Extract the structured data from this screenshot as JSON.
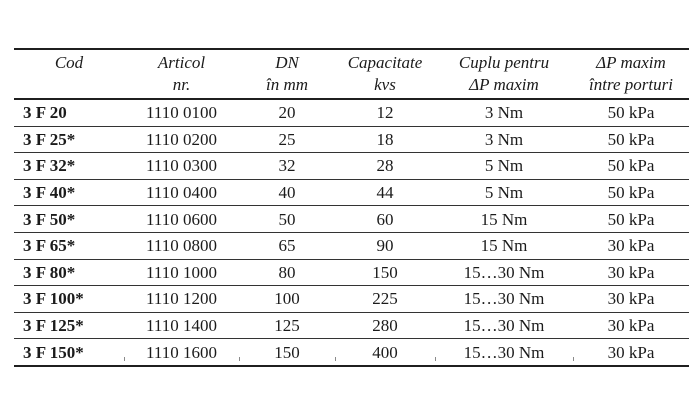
{
  "table": {
    "headers": [
      {
        "line1": "Cod",
        "line2": ""
      },
      {
        "line1": "Articol",
        "line2": "nr."
      },
      {
        "line1": "DN",
        "line2": "în mm"
      },
      {
        "line1": "Capacitate",
        "line2": "kvs"
      },
      {
        "line1": "Cuplu pentru",
        "line2": "ΔP maxim"
      },
      {
        "line1": "ΔP maxim",
        "line2": "între porturi"
      }
    ],
    "rows": [
      [
        "3 F 20",
        "1110 0100",
        "20",
        "12",
        "3 Nm",
        "50 kPa"
      ],
      [
        "3 F 25*",
        "1110 0200",
        "25",
        "18",
        "3 Nm",
        "50 kPa"
      ],
      [
        "3 F 32*",
        "1110 0300",
        "32",
        "28",
        "5 Nm",
        "50 kPa"
      ],
      [
        "3 F 40*",
        "1110 0400",
        "40",
        "44",
        "5 Nm",
        "50 kPa"
      ],
      [
        "3 F 50*",
        "1110 0600",
        "50",
        "60",
        "15 Nm",
        "50 kPa"
      ],
      [
        "3 F 65*",
        "1110 0800",
        "65",
        "90",
        "15 Nm",
        "30 kPa"
      ],
      [
        "3 F 80*",
        "1110 1000",
        "80",
        "150",
        "15…30 Nm",
        "30 kPa"
      ],
      [
        "3 F 100*",
        "1110 1200",
        "100",
        "225",
        "15…30 Nm",
        "30 kPa"
      ],
      [
        "3 F 125*",
        "1110 1400",
        "125",
        "280",
        "15…30 Nm",
        "30 kPa"
      ],
      [
        "3 F 150*",
        "1110 1600",
        "150",
        "400",
        "15…30 Nm",
        "30 kPa"
      ]
    ],
    "colors": {
      "text": "#1b1b1b",
      "rule_heavy": "#1f1f1f",
      "rule_light": "#333333",
      "background": "#ffffff"
    }
  }
}
